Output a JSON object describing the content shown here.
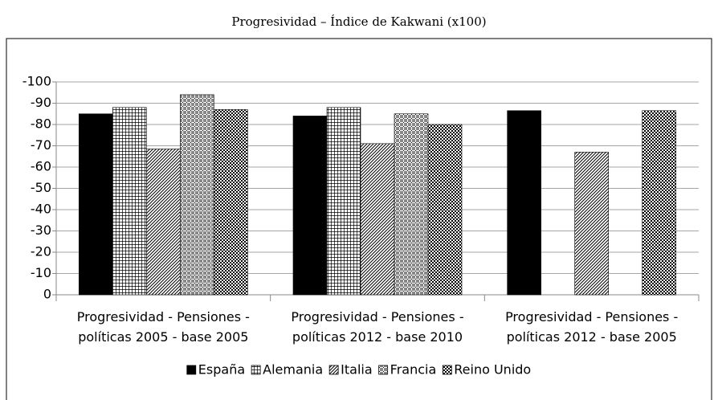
{
  "chart_data": {
    "type": "bar",
    "title": "Progresividad – Índice de Kakwani (x100)",
    "categories": [
      "Progresividad - Pensiones - políticas 2005 - base 2005",
      "Progresividad - Pensiones - políticas 2012 - base 2010",
      "Progresividad - Pensiones - políticas 2012 - base 2005"
    ],
    "series": [
      {
        "name": "España",
        "color": "#000000",
        "pattern": "solid",
        "values": [
          -85,
          -84,
          -86.5
        ]
      },
      {
        "name": "Alemania",
        "color": "#000000",
        "pattern": "grid",
        "values": [
          -88,
          -88,
          null
        ]
      },
      {
        "name": "Italia",
        "color": "#000000",
        "pattern": "diagonal",
        "values": [
          -68.5,
          -71,
          -67
        ]
      },
      {
        "name": "Francia",
        "color": "#000000",
        "pattern": "dots",
        "values": [
          -94,
          -85,
          null
        ]
      },
      {
        "name": "Reino Unido",
        "color": "#000000",
        "pattern": "checker",
        "values": [
          -87,
          -80,
          -86.5
        ]
      }
    ],
    "ylim": [
      0,
      -100
    ],
    "yticks": [
      0,
      -10,
      -20,
      -30,
      -40,
      -50,
      -60,
      -70,
      -80,
      -90,
      -100
    ],
    "grid": true
  }
}
